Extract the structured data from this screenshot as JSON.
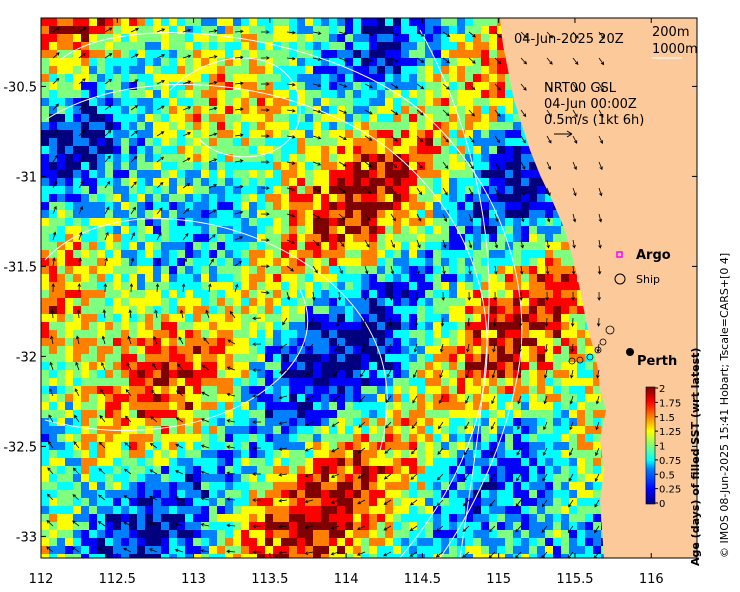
{
  "map": {
    "lon_range": [
      112,
      116.3
    ],
    "lat_range": [
      -33.12,
      -30.12
    ],
    "lon_ticks": [
      112,
      112.5,
      113,
      113.5,
      114,
      114.5,
      115,
      115.5,
      116
    ],
    "lat_ticks": [
      -30.5,
      -31,
      -31.5,
      -32,
      -32.5,
      -33
    ],
    "lon_tick_labels": [
      "112",
      "112.5",
      "113",
      "113.5",
      "114",
      "114.5",
      "115",
      "115.5",
      "116"
    ],
    "lat_tick_labels": [
      "-30.5",
      "-31",
      "-31.5",
      "-32",
      "-32.5",
      "-33"
    ],
    "land_color": "#fbc99a"
  },
  "annotations": {
    "date_label": "04-Jun-2025 20Z",
    "contour_200": "200m",
    "contour_1000": "1000m",
    "currents_title": "NRT00 GSL",
    "currents_time": "04-Jun 00:00Z",
    "currents_scale": "0.5m/s (1kt 6h)"
  },
  "legend": {
    "argo_label": "Argo",
    "ship_label": "Ship",
    "city_label": "Perth",
    "argo_color": "#ff00ff"
  },
  "colorbar": {
    "title": "Age (days) of filled SST (wrt latest)",
    "ticks": [
      "2",
      "1.75",
      "1.5",
      "1.25",
      "1",
      "0.75",
      "0.5",
      "0.25",
      "0"
    ],
    "colors": [
      "#00007f",
      "#0000ff",
      "#007fff",
      "#00ffff",
      "#7fff7f",
      "#ffff00",
      "#ff7f00",
      "#ff0000",
      "#7f0000"
    ]
  },
  "credit": "© IMOS 08-Jun-2025 15:41 Hobart; Tscale=CARS+[0 4]"
}
